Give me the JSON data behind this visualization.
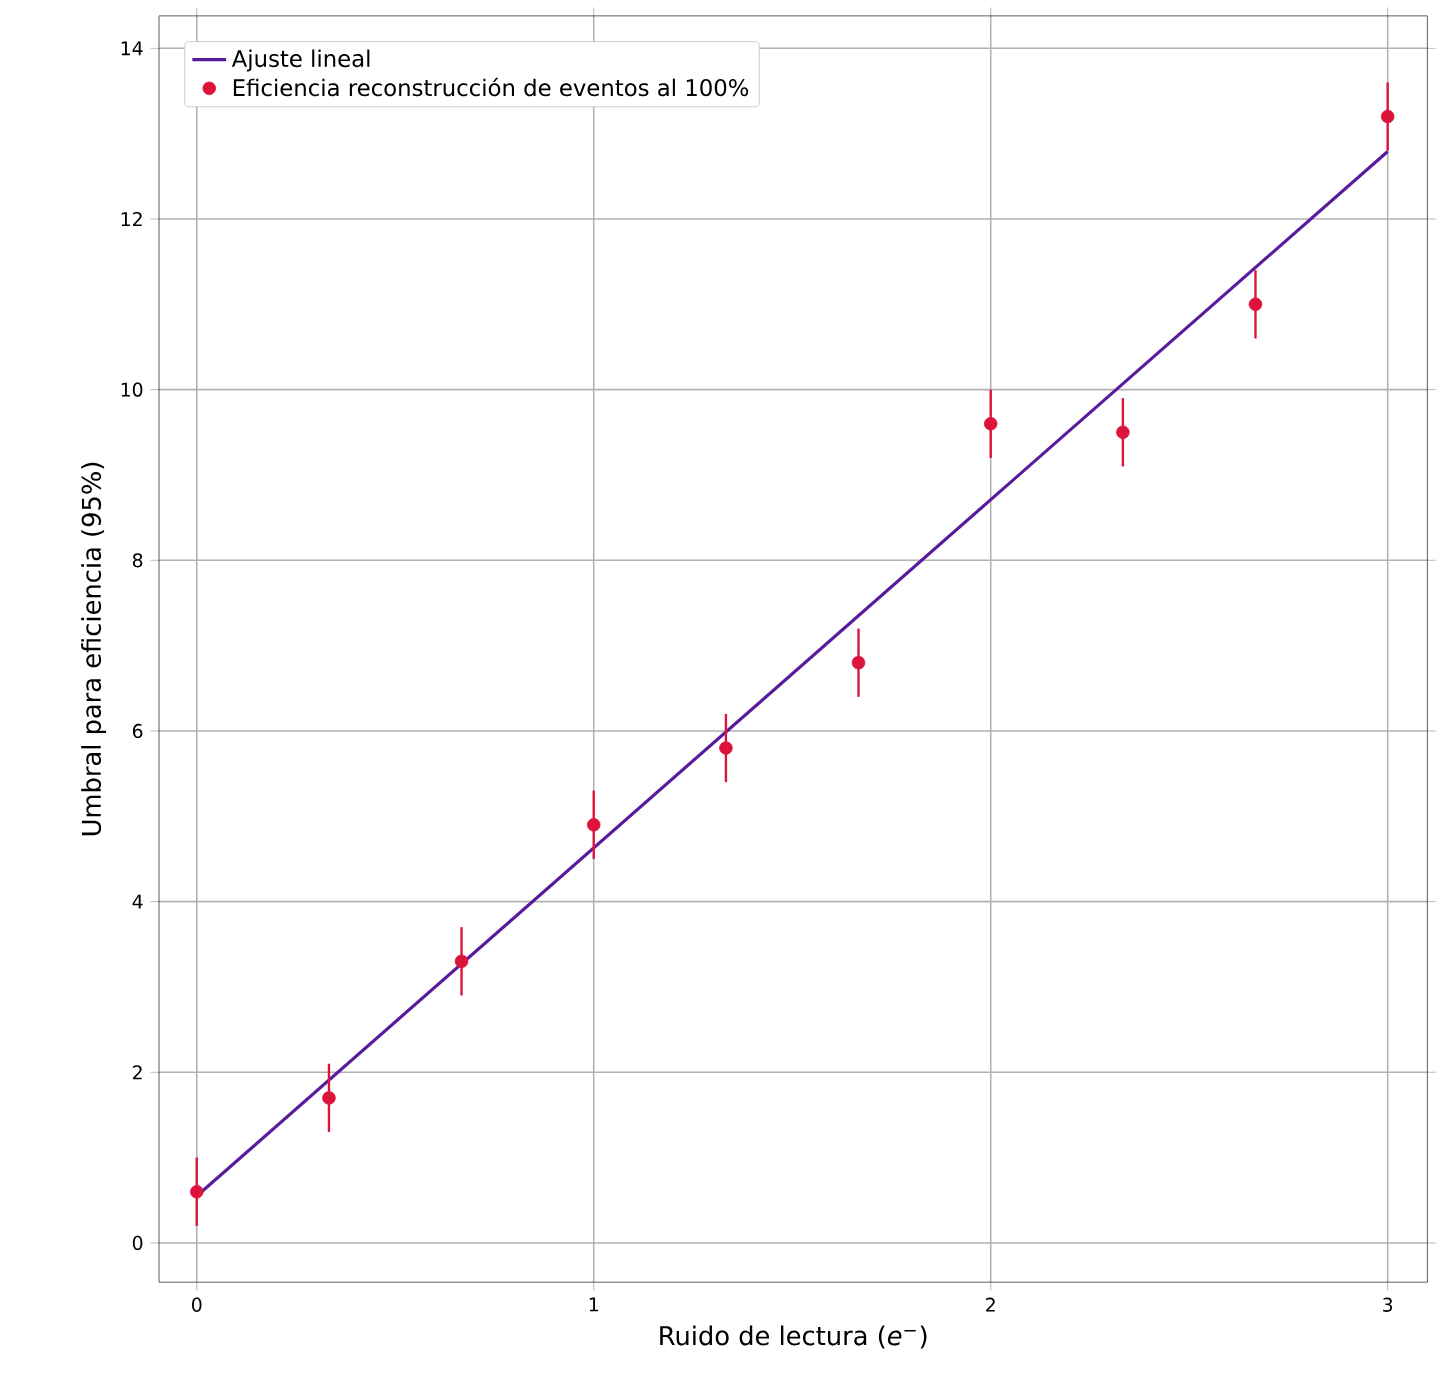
{
  "chart_data": {
    "type": "scatter",
    "xlabel": "Ruido de lectura (*e*$^{−}$)",
    "ylabel": "Umbral para eficiencia (95%)",
    "xlim": [
      -0.095,
      3.1
    ],
    "ylim": [
      -0.46,
      14.38
    ],
    "xticks": [
      0,
      1,
      2,
      3
    ],
    "yticks": [
      0,
      2,
      4,
      6,
      8,
      10,
      12,
      14
    ],
    "grid": true,
    "legend": "top left",
    "series": [
      {
        "name": "Ajuste lineal",
        "type": "line",
        "color": "#5a1a9e",
        "marker": "none",
        "line_style": "solid",
        "x": [
          0,
          3
        ],
        "values": [
          0.55,
          12.79
        ]
      },
      {
        "name": "Eficiencia reconstrucción de eventos al 100%",
        "color": "#dc143c",
        "marker": "circle",
        "x": [
          0,
          0.333,
          0.667,
          1,
          1.333,
          1.667,
          2,
          2.333,
          2.667,
          3
        ],
        "values": [
          0.6,
          1.7,
          3.3,
          4.9,
          5.8,
          6.8,
          9.6,
          9.5,
          11.0,
          13.2
        ],
        "errors": [
          0.4,
          0.4,
          0.4,
          0.4,
          0.4,
          0.4,
          0.4,
          0.4,
          0.4,
          0.4
        ]
      }
    ]
  }
}
